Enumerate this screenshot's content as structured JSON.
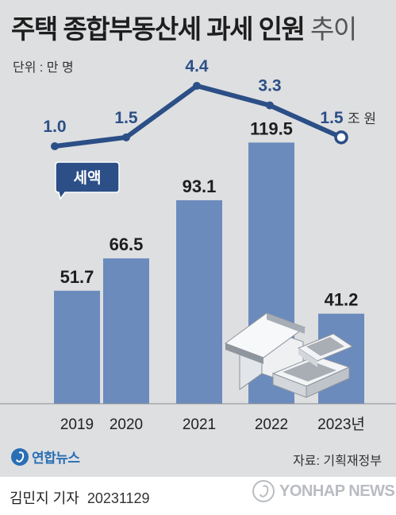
{
  "title": {
    "main": "주택 종합부동산세 과세 인원",
    "suffix": "추이"
  },
  "unit_label": "단위 : 만 명",
  "chart_data": {
    "type": "bar",
    "categories": [
      "2019",
      "2020",
      "2021",
      "2022",
      "2023년"
    ],
    "series": [
      {
        "values": [
          51.7,
          66.5,
          93.1,
          119.5,
          41.2
        ],
        "color": "#6b8bbd"
      }
    ],
    "line_series": {
      "name": "세액",
      "values": [
        1.0,
        1.5,
        4.4,
        3.3,
        1.5
      ],
      "labels": [
        "1.0",
        "1.5",
        "4.4",
        "3.3",
        "1.5"
      ],
      "last_unit": "조 원",
      "color": "#2b4f86"
    },
    "value_labels": [
      "51.7",
      "66.5",
      "93.1",
      "119.5",
      "41.2"
    ],
    "ylim": [
      0,
      130
    ],
    "xlabel": "",
    "ylabel": ""
  },
  "source_label": "자료: 기획재정부",
  "logo_label": "연합뉴스",
  "reporter": "김민지 기자",
  "date": "20231129",
  "watermark_label": "YONHAP NEWS"
}
